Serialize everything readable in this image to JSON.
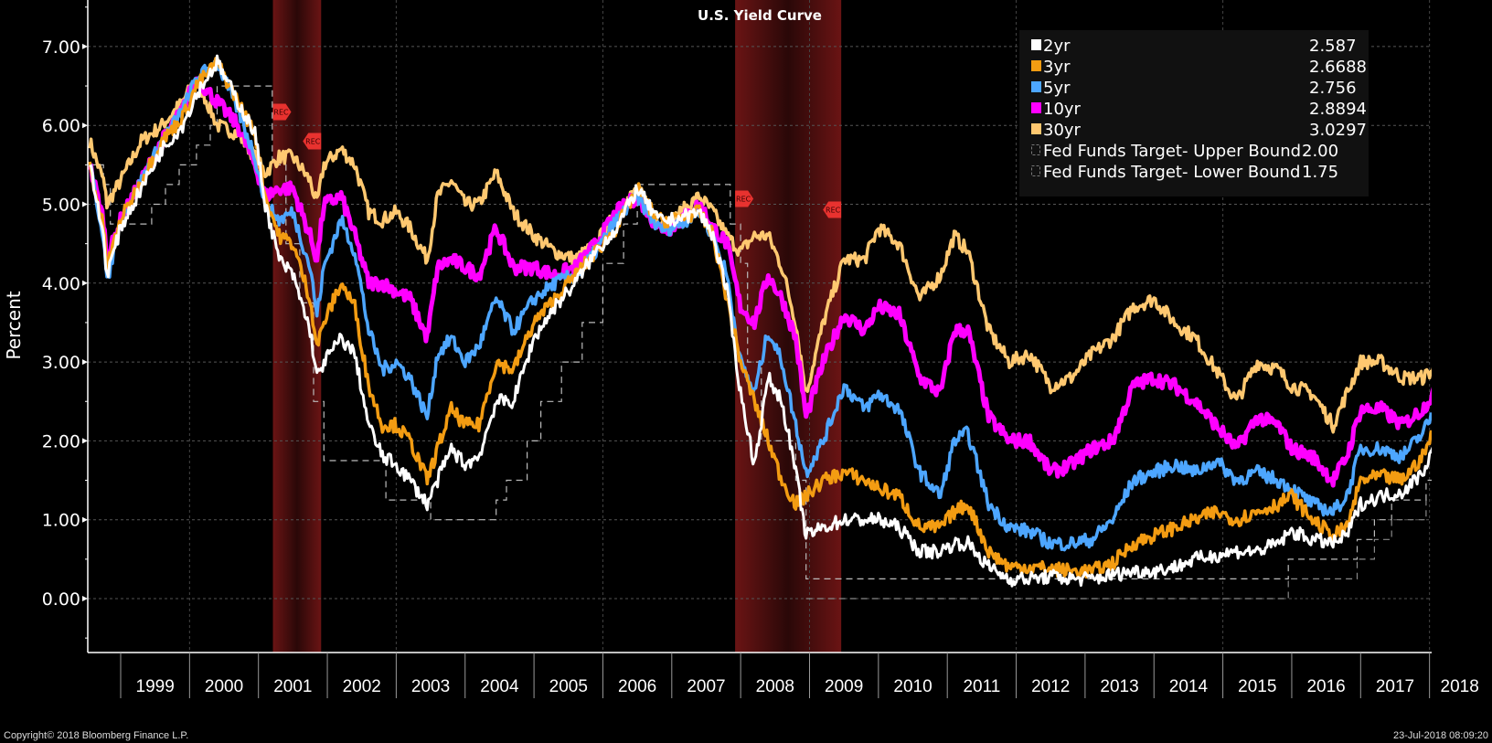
{
  "chart_data": {
    "type": "line",
    "title": "U.S. Yield Curve",
    "xlabel": "",
    "ylabel": "Percent",
    "ylim": [
      -0.7,
      7.6
    ],
    "xlim": [
      1998.55,
      2018.56
    ],
    "yticks": [
      "0.00",
      "1.00",
      "2.00",
      "3.00",
      "4.00",
      "5.00",
      "6.00",
      "7.00"
    ],
    "ytick_values": [
      0,
      1,
      2,
      3,
      4,
      5,
      6,
      7
    ],
    "xtick_labels": [
      "1999",
      "2000",
      "2001",
      "2002",
      "2003",
      "2004",
      "2005",
      "2006",
      "2007",
      "2008",
      "2009",
      "2010",
      "2011",
      "2012",
      "2013",
      "2014",
      "2015",
      "2016",
      "2017",
      "2018"
    ],
    "grid": true,
    "legend_position": "top-right",
    "recessions": [
      {
        "start": 2001.21,
        "end": 2001.91,
        "label": "REC"
      },
      {
        "start": 2007.92,
        "end": 2009.46,
        "label": "REC"
      }
    ],
    "series": [
      {
        "name": "2yr",
        "color": "#ffffff",
        "last": "2.587",
        "x": [
          1998.55,
          1998.75,
          1998.8,
          1999.0,
          1999.3,
          1999.6,
          1999.9,
          2000.1,
          2000.4,
          2000.7,
          2000.95,
          2001.1,
          2001.3,
          2001.5,
          2001.75,
          2001.85,
          2001.95,
          2002.2,
          2002.4,
          2002.6,
          2002.8,
          2003.0,
          2003.2,
          2003.45,
          2003.6,
          2003.8,
          2004.0,
          2004.2,
          2004.45,
          2004.7,
          2005.0,
          2005.3,
          2005.6,
          2005.9,
          2006.2,
          2006.5,
          2006.8,
          2007.0,
          2007.4,
          2007.6,
          2007.8,
          2008.0,
          2008.2,
          2008.4,
          2008.6,
          2008.8,
          2008.95,
          2009.2,
          2009.5,
          2009.8,
          2010.0,
          2010.3,
          2010.6,
          2010.9,
          2011.1,
          2011.3,
          2011.6,
          2011.9,
          2012.2,
          2012.5,
          2012.8,
          2013.1,
          2013.4,
          2013.7,
          2014.0,
          2014.3,
          2014.6,
          2014.9,
          2015.2,
          2015.5,
          2015.8,
          2016.0,
          2016.3,
          2016.6,
          2016.8,
          2017.0,
          2017.3,
          2017.6,
          2017.9,
          2018.2,
          2018.4,
          2018.56
        ],
        "y": [
          5.5,
          4.6,
          4.1,
          4.7,
          5.2,
          5.7,
          6.0,
          6.4,
          6.8,
          6.3,
          5.9,
          5.0,
          4.3,
          4.1,
          3.4,
          2.8,
          3.0,
          3.3,
          3.1,
          2.2,
          1.8,
          1.7,
          1.5,
          1.2,
          1.5,
          1.9,
          1.7,
          1.8,
          2.5,
          2.5,
          3.3,
          3.7,
          4.0,
          4.4,
          4.7,
          5.2,
          4.8,
          4.8,
          4.9,
          4.6,
          3.9,
          2.6,
          1.7,
          2.8,
          2.5,
          1.6,
          0.8,
          0.9,
          1.0,
          1.0,
          1.0,
          0.9,
          0.6,
          0.6,
          0.7,
          0.7,
          0.4,
          0.25,
          0.25,
          0.28,
          0.25,
          0.25,
          0.3,
          0.35,
          0.35,
          0.4,
          0.5,
          0.55,
          0.6,
          0.6,
          0.7,
          0.85,
          0.75,
          0.7,
          0.8,
          1.2,
          1.3,
          1.35,
          1.6,
          2.2,
          2.5,
          2.6
        ]
      },
      {
        "name": "3yr",
        "color": "#f39c12",
        "last": "2.6688",
        "x": [
          1998.55,
          1998.75,
          1998.8,
          1999.0,
          1999.3,
          1999.6,
          1999.9,
          2000.1,
          2000.4,
          2000.7,
          2000.95,
          2001.1,
          2001.3,
          2001.5,
          2001.75,
          2001.85,
          2001.95,
          2002.2,
          2002.4,
          2002.6,
          2002.8,
          2003.0,
          2003.2,
          2003.45,
          2003.6,
          2003.8,
          2004.0,
          2004.2,
          2004.45,
          2004.7,
          2005.0,
          2005.3,
          2005.6,
          2005.9,
          2006.2,
          2006.5,
          2006.8,
          2007.0,
          2007.4,
          2007.6,
          2007.8,
          2008.0,
          2008.2,
          2008.4,
          2008.6,
          2008.8,
          2008.95,
          2009.2,
          2009.5,
          2009.8,
          2010.0,
          2010.3,
          2010.6,
          2010.9,
          2011.1,
          2011.3,
          2011.6,
          2011.9,
          2012.2,
          2012.5,
          2012.8,
          2013.1,
          2013.4,
          2013.7,
          2014.0,
          2014.3,
          2014.6,
          2014.9,
          2015.2,
          2015.5,
          2015.8,
          2016.0,
          2016.3,
          2016.6,
          2016.8,
          2017.0,
          2017.3,
          2017.6,
          2017.9,
          2018.2,
          2018.4,
          2018.56
        ],
        "y": [
          5.5,
          4.7,
          4.2,
          4.8,
          5.3,
          5.8,
          6.1,
          6.5,
          6.8,
          6.3,
          5.9,
          5.1,
          4.6,
          4.5,
          3.8,
          3.2,
          3.5,
          4.0,
          3.7,
          2.7,
          2.2,
          2.2,
          2.0,
          1.5,
          1.9,
          2.4,
          2.2,
          2.2,
          3.0,
          2.9,
          3.5,
          3.8,
          4.1,
          4.4,
          4.7,
          5.2,
          4.8,
          4.8,
          4.9,
          4.6,
          3.8,
          3.0,
          2.5,
          2.0,
          1.5,
          1.2,
          1.3,
          1.5,
          1.6,
          1.5,
          1.4,
          1.3,
          0.9,
          0.9,
          1.1,
          1.2,
          0.6,
          0.4,
          0.4,
          0.38,
          0.35,
          0.35,
          0.45,
          0.7,
          0.8,
          0.9,
          1.0,
          1.1,
          1.0,
          1.1,
          1.2,
          1.3,
          1.0,
          0.8,
          0.9,
          1.5,
          1.55,
          1.5,
          1.8,
          2.4,
          2.6,
          2.67
        ]
      },
      {
        "name": "5yr",
        "color": "#4da6ff",
        "last": "2.756",
        "x": [
          1998.55,
          1998.75,
          1998.8,
          1999.0,
          1999.3,
          1999.6,
          1999.9,
          2000.1,
          2000.4,
          2000.7,
          2000.95,
          2001.1,
          2001.3,
          2001.5,
          2001.75,
          2001.85,
          2001.95,
          2002.2,
          2002.4,
          2002.6,
          2002.8,
          2003.0,
          2003.2,
          2003.45,
          2003.6,
          2003.8,
          2004.0,
          2004.2,
          2004.45,
          2004.7,
          2005.0,
          2005.3,
          2005.6,
          2005.9,
          2006.2,
          2006.5,
          2006.8,
          2007.0,
          2007.4,
          2007.6,
          2007.8,
          2008.0,
          2008.2,
          2008.4,
          2008.6,
          2008.8,
          2008.95,
          2009.2,
          2009.5,
          2009.8,
          2010.0,
          2010.3,
          2010.6,
          2010.9,
          2011.1,
          2011.3,
          2011.6,
          2011.9,
          2012.2,
          2012.5,
          2012.8,
          2013.1,
          2013.4,
          2013.7,
          2014.0,
          2014.3,
          2014.6,
          2014.9,
          2015.2,
          2015.5,
          2015.8,
          2016.0,
          2016.3,
          2016.6,
          2016.8,
          2017.0,
          2017.3,
          2017.6,
          2017.9,
          2018.2,
          2018.4,
          2018.56
        ],
        "y": [
          5.5,
          4.6,
          4.0,
          4.8,
          5.3,
          5.8,
          6.2,
          6.6,
          6.8,
          6.2,
          5.6,
          5.0,
          4.8,
          4.9,
          4.2,
          3.6,
          4.2,
          4.8,
          4.4,
          3.4,
          2.9,
          3.0,
          2.8,
          2.3,
          3.1,
          3.3,
          3.0,
          3.2,
          3.8,
          3.4,
          3.8,
          4.0,
          4.1,
          4.4,
          4.8,
          5.1,
          4.7,
          4.7,
          4.9,
          4.6,
          4.1,
          3.0,
          2.6,
          3.4,
          3.0,
          2.2,
          1.6,
          2.0,
          2.7,
          2.4,
          2.6,
          2.4,
          1.6,
          1.3,
          2.0,
          2.1,
          1.2,
          0.9,
          0.85,
          0.7,
          0.7,
          0.75,
          1.0,
          1.5,
          1.6,
          1.7,
          1.6,
          1.75,
          1.5,
          1.6,
          1.5,
          1.4,
          1.2,
          1.1,
          1.3,
          1.9,
          1.9,
          1.8,
          2.1,
          2.6,
          2.8,
          2.76
        ]
      },
      {
        "name": "10yr",
        "color": "#ff00ff",
        "last": "2.8894",
        "x": [
          1998.55,
          1998.75,
          1998.8,
          1999.0,
          1999.3,
          1999.6,
          1999.9,
          2000.1,
          2000.4,
          2000.7,
          2000.95,
          2001.1,
          2001.3,
          2001.5,
          2001.75,
          2001.85,
          2001.95,
          2002.2,
          2002.4,
          2002.6,
          2002.8,
          2003.0,
          2003.2,
          2003.45,
          2003.6,
          2003.8,
          2004.0,
          2004.2,
          2004.45,
          2004.7,
          2005.0,
          2005.3,
          2005.6,
          2005.9,
          2006.2,
          2006.5,
          2006.8,
          2007.0,
          2007.4,
          2007.6,
          2007.8,
          2008.0,
          2008.2,
          2008.4,
          2008.6,
          2008.8,
          2008.95,
          2009.2,
          2009.5,
          2009.8,
          2010.0,
          2010.3,
          2010.6,
          2010.9,
          2011.1,
          2011.3,
          2011.6,
          2011.9,
          2012.2,
          2012.5,
          2012.8,
          2013.1,
          2013.4,
          2013.7,
          2014.0,
          2014.3,
          2014.6,
          2014.9,
          2015.2,
          2015.5,
          2015.8,
          2016.0,
          2016.3,
          2016.6,
          2016.8,
          2017.0,
          2017.3,
          2017.6,
          2017.9,
          2018.2,
          2018.4,
          2018.56
        ],
        "y": [
          5.5,
          4.8,
          4.3,
          4.8,
          5.3,
          5.8,
          6.2,
          6.6,
          6.3,
          6.0,
          5.5,
          5.1,
          5.2,
          5.2,
          4.6,
          4.3,
          5.0,
          5.1,
          4.6,
          4.0,
          4.0,
          3.9,
          3.8,
          3.3,
          4.2,
          4.3,
          4.2,
          4.1,
          4.7,
          4.2,
          4.2,
          4.1,
          4.2,
          4.5,
          4.9,
          5.1,
          4.7,
          4.7,
          5.0,
          4.7,
          4.5,
          3.7,
          3.5,
          4.1,
          3.8,
          3.3,
          2.3,
          3.0,
          3.6,
          3.4,
          3.7,
          3.6,
          2.8,
          2.6,
          3.4,
          3.4,
          2.3,
          2.0,
          2.0,
          1.6,
          1.7,
          1.9,
          2.0,
          2.7,
          2.8,
          2.7,
          2.5,
          2.2,
          1.9,
          2.3,
          2.2,
          1.9,
          1.8,
          1.5,
          1.8,
          2.4,
          2.4,
          2.2,
          2.4,
          2.8,
          3.0,
          2.89
        ]
      },
      {
        "name": "30yr",
        "color": "#ffc870",
        "last": "3.0297",
        "x": [
          1998.55,
          1998.75,
          1998.8,
          1999.0,
          1999.3,
          1999.6,
          1999.9,
          2000.1,
          2000.4,
          2000.7,
          2000.95,
          2001.1,
          2001.3,
          2001.5,
          2001.75,
          2001.85,
          2001.95,
          2002.2,
          2002.4,
          2002.6,
          2002.8,
          2003.0,
          2003.2,
          2003.45,
          2003.6,
          2003.8,
          2004.0,
          2004.2,
          2004.45,
          2004.7,
          2005.0,
          2005.3,
          2005.6,
          2005.9,
          2006.2,
          2006.5,
          2006.8,
          2007.0,
          2007.4,
          2007.6,
          2007.8,
          2008.0,
          2008.2,
          2008.4,
          2008.6,
          2008.8,
          2008.95,
          2009.2,
          2009.5,
          2009.8,
          2010.0,
          2010.3,
          2010.6,
          2010.9,
          2011.1,
          2011.3,
          2011.6,
          2011.9,
          2012.2,
          2012.5,
          2012.8,
          2013.1,
          2013.4,
          2013.7,
          2014.0,
          2014.3,
          2014.6,
          2014.9,
          2015.2,
          2015.5,
          2015.8,
          2016.0,
          2016.3,
          2016.6,
          2016.8,
          2017.0,
          2017.3,
          2017.6,
          2017.9,
          2018.2,
          2018.4,
          2018.56
        ],
        "y": [
          5.8,
          5.3,
          5.0,
          5.3,
          5.8,
          6.0,
          6.3,
          6.6,
          6.0,
          5.9,
          5.6,
          5.4,
          5.6,
          5.6,
          5.3,
          5.0,
          5.5,
          5.7,
          5.5,
          4.9,
          4.8,
          4.9,
          4.7,
          4.3,
          5.1,
          5.3,
          5.0,
          5.0,
          5.4,
          4.9,
          4.6,
          4.4,
          4.3,
          4.5,
          4.9,
          5.2,
          4.8,
          4.8,
          5.1,
          4.9,
          4.6,
          4.4,
          4.6,
          4.6,
          4.2,
          3.5,
          2.6,
          3.5,
          4.3,
          4.3,
          4.7,
          4.5,
          3.8,
          4.1,
          4.6,
          4.4,
          3.4,
          3.0,
          3.1,
          2.7,
          2.8,
          3.1,
          3.3,
          3.7,
          3.8,
          3.5,
          3.3,
          2.9,
          2.5,
          3.0,
          2.9,
          2.7,
          2.6,
          2.2,
          2.6,
          3.0,
          3.0,
          2.8,
          2.8,
          3.0,
          3.1,
          3.03
        ]
      },
      {
        "name": "Fed Funds Target- Upper Bound",
        "color": "#bbbbbb",
        "last": "2.00",
        "dashed": true,
        "x": [
          1998.55,
          1998.75,
          1998.85,
          1999.45,
          1999.65,
          1999.85,
          2000.1,
          2000.3,
          2000.4,
          2001.0,
          2001.2,
          2001.4,
          2001.6,
          2001.8,
          2001.95,
          2002.85,
          2003.5,
          2004.45,
          2004.6,
          2004.9,
          2005.1,
          2005.4,
          2005.7,
          2006.0,
          2006.3,
          2006.5,
          2007.7,
          2007.85,
          2008.0,
          2008.1,
          2008.3,
          2008.8,
          2008.95,
          2015.95,
          2016.95,
          2017.2,
          2017.45,
          2017.95,
          2018.2,
          2018.45
        ],
        "y": [
          5.5,
          5.25,
          4.75,
          5.0,
          5.25,
          5.5,
          5.75,
          6.0,
          6.5,
          6.5,
          5.5,
          4.5,
          3.75,
          2.5,
          1.75,
          1.25,
          1.0,
          1.25,
          1.5,
          2.0,
          2.5,
          3.0,
          3.5,
          4.25,
          4.75,
          5.25,
          5.25,
          4.75,
          4.25,
          3.0,
          2.0,
          1.5,
          0.25,
          0.5,
          0.75,
          1.0,
          1.25,
          1.5,
          1.75,
          2.0
        ]
      },
      {
        "name": "Fed Funds Target- Lower Bound",
        "color": "#888888",
        "last": "1.75",
        "dashed": true,
        "x": [
          2008.95,
          2015.95,
          2016.95,
          2017.2,
          2017.45,
          2017.95,
          2018.2,
          2018.45
        ],
        "y": [
          0.0,
          0.25,
          0.5,
          0.75,
          1.0,
          1.25,
          1.5,
          1.75
        ]
      }
    ]
  },
  "footer": {
    "copyright": "Copyright© 2018 Bloomberg Finance L.P.",
    "timestamp": "23-Jul-2018 08:09:20"
  }
}
